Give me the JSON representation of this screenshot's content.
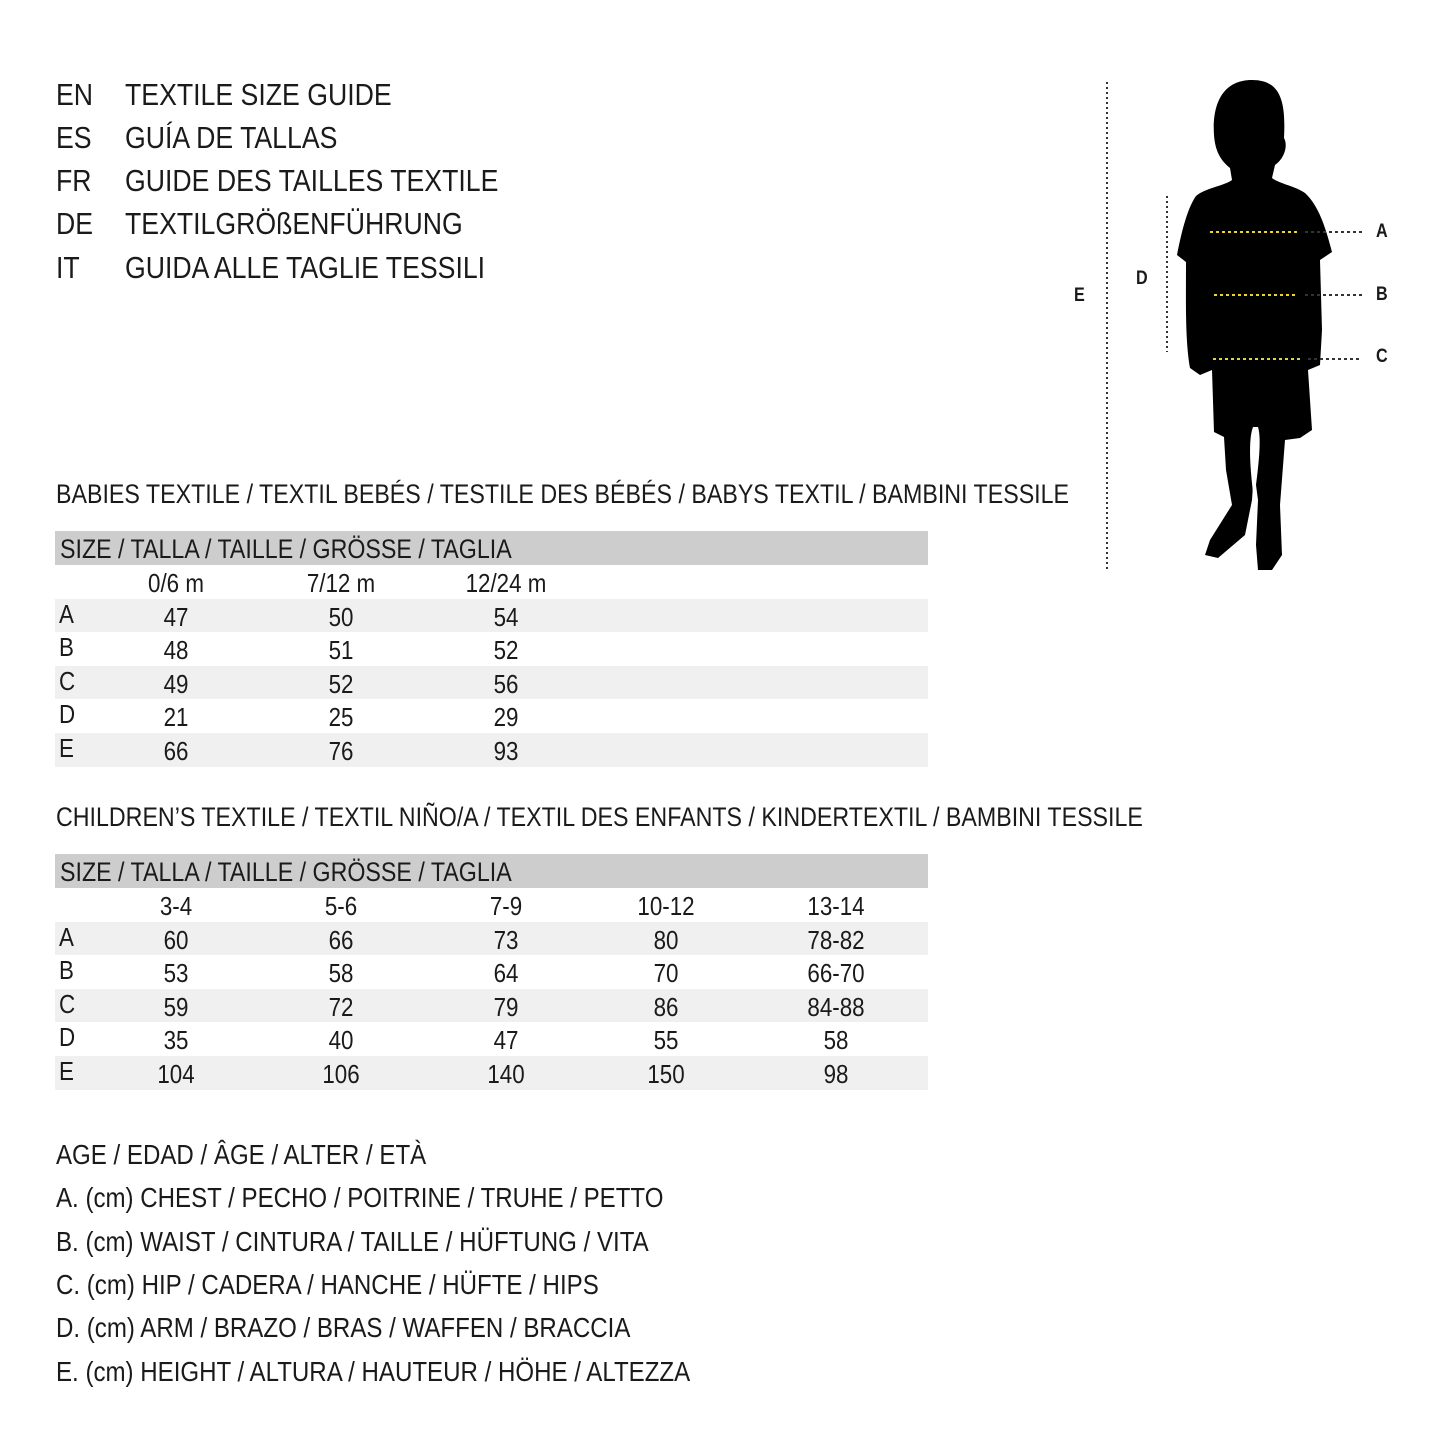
{
  "header": {
    "lines": [
      {
        "code": "EN",
        "text": "TEXTILE SIZE GUIDE"
      },
      {
        "code": "ES",
        "text": "GUÍA DE TALLAS"
      },
      {
        "code": "FR",
        "text": "GUIDE DES TAILLES TEXTILE"
      },
      {
        "code": "DE",
        "text": "TEXTILGRÖßENFÜHRUNG"
      },
      {
        "code": "IT",
        "text": "GUIDA ALLE TAGLIE TESSILI"
      }
    ]
  },
  "figure": {
    "labels": {
      "A": "A",
      "B": "B",
      "C": "C",
      "D": "D",
      "E": "E"
    },
    "colors": {
      "silhouette": "#000000",
      "measure_line": "#e8d530"
    }
  },
  "babies": {
    "title": "BABIES TEXTILE / TEXTIL BEBÉS / TESTILE DES BÉBÉS / BABYS TEXTIL / BAMBINI TESSILE",
    "size_header": "SIZE / TALLA / TAILLE / GRÖSSE / TAGLIA",
    "columns": [
      "0/6 m",
      "7/12 m",
      "12/24 m"
    ],
    "rows": [
      {
        "label": "A",
        "values": [
          "47",
          "50",
          "54"
        ]
      },
      {
        "label": "B",
        "values": [
          "48",
          "51",
          "52"
        ]
      },
      {
        "label": "C",
        "values": [
          "49",
          "52",
          "56"
        ]
      },
      {
        "label": "D",
        "values": [
          "21",
          "25",
          "29"
        ]
      },
      {
        "label": "E",
        "values": [
          "66",
          "76",
          "93"
        ]
      }
    ]
  },
  "children": {
    "title": "CHILDREN’S TEXTILE / TEXTIL NIÑO/A / TEXTIL DES ENFANTS / KINDERTEXTIL / BAMBINI TESSILE",
    "size_header": "SIZE / TALLA / TAILLE / GRÖSSE / TAGLIA",
    "columns": [
      "3-4",
      "5-6",
      "7-9",
      "10-12",
      "13-14"
    ],
    "rows": [
      {
        "label": "A",
        "values": [
          "60",
          "66",
          "73",
          "80",
          "78-82"
        ]
      },
      {
        "label": "B",
        "values": [
          "53",
          "58",
          "64",
          "70",
          "66-70"
        ]
      },
      {
        "label": "C",
        "values": [
          "59",
          "72",
          "79",
          "86",
          "84-88"
        ]
      },
      {
        "label": "D",
        "values": [
          "35",
          "40",
          "47",
          "55",
          "58"
        ]
      },
      {
        "label": "E",
        "values": [
          "104",
          "106",
          "140",
          "150",
          "98"
        ]
      }
    ]
  },
  "legend": [
    "AGE / EDAD / ÂGE / ALTER / ETÀ",
    "A. (cm) CHEST / PECHO / POITRINE / TRUHE / PETTO",
    "B. (cm) WAIST / CINTURA / TAILLE / HÜFTUNG / VITA",
    "C. (cm) HIP / CADERA / HANCHE / HÜFTE / HIPS",
    "D. (cm) ARM / BRAZO / BRAS / WAFFEN / BRACCIA",
    "E. (cm) HEIGHT / ALTURA / HAUTEUR / HÖHE / ALTEZZA"
  ]
}
